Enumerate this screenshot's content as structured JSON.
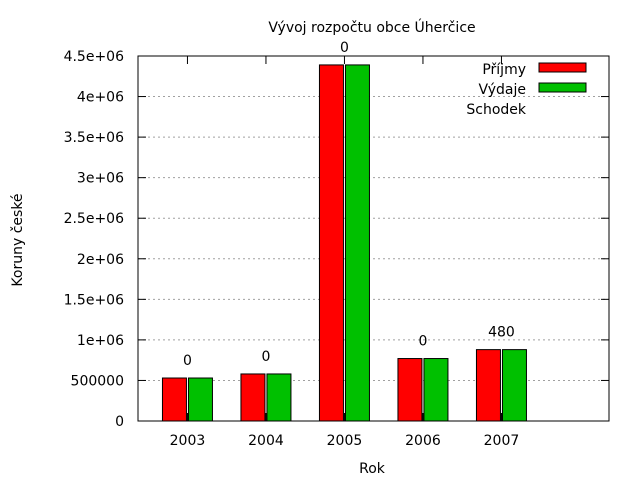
{
  "chart_data": {
    "type": "bar",
    "title": "Vývoj rozpočtu obce Úherčice",
    "xlabel": "Rok",
    "ylabel": "Koruny české",
    "ylim": [
      0,
      4500000
    ],
    "yticks": [
      {
        "value": 0,
        "label": "0"
      },
      {
        "value": 500000,
        "label": "500000"
      },
      {
        "value": 1000000,
        "label": "1e+06"
      },
      {
        "value": 1500000,
        "label": "1.5e+06"
      },
      {
        "value": 2000000,
        "label": "2e+06"
      },
      {
        "value": 2500000,
        "label": "2.5e+06"
      },
      {
        "value": 3000000,
        "label": "3e+06"
      },
      {
        "value": 3500000,
        "label": "3.5e+06"
      },
      {
        "value": 4000000,
        "label": "4e+06"
      },
      {
        "value": 4500000,
        "label": "4.5e+06"
      }
    ],
    "grid": true,
    "legend_position": "top-right",
    "categories": [
      "2003",
      "2004",
      "2005",
      "2006",
      "2007"
    ],
    "series": [
      {
        "name": "Příjmy",
        "color": "#ff0000",
        "values": [
          530000,
          580000,
          4390000,
          770000,
          880000
        ]
      },
      {
        "name": "Výdaje",
        "color": "#00c000",
        "values": [
          530000,
          580000,
          4390000,
          770000,
          880000
        ]
      },
      {
        "name": "Schodek",
        "color": null,
        "values": [
          0,
          0,
          0,
          0,
          480
        ]
      }
    ],
    "data_labels": [
      "0",
      "0",
      "0",
      "0",
      "480"
    ]
  }
}
